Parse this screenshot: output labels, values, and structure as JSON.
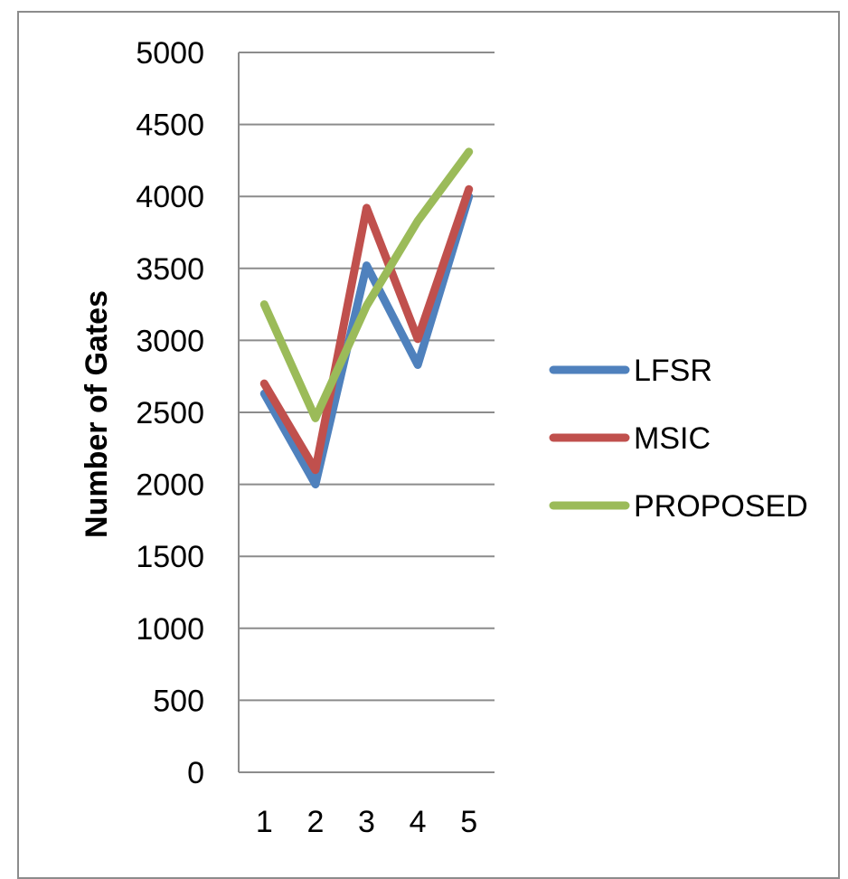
{
  "chart_data": {
    "type": "line",
    "x": [
      1,
      2,
      3,
      4,
      5
    ],
    "categories": [
      "1",
      "2",
      "3",
      "4",
      "5"
    ],
    "ylabel": "Number of Gates",
    "xlabel": "",
    "ylim": [
      0,
      5000
    ],
    "yticks": [
      0,
      500,
      1000,
      1500,
      2000,
      2500,
      3000,
      3500,
      4000,
      4500,
      5000
    ],
    "grid": "horizontal",
    "legend_position": "right",
    "series": [
      {
        "name": "LFSR",
        "color": "#4f81bd",
        "values": [
          2630,
          2000,
          3520,
          2830,
          4000
        ]
      },
      {
        "name": "MSIC",
        "color": "#c0504d",
        "values": [
          2700,
          2100,
          3920,
          3010,
          4050
        ]
      },
      {
        "name": "PROPOSED",
        "color": "#9bbb59",
        "values": [
          3250,
          2460,
          3240,
          3830,
          4310
        ]
      }
    ]
  }
}
